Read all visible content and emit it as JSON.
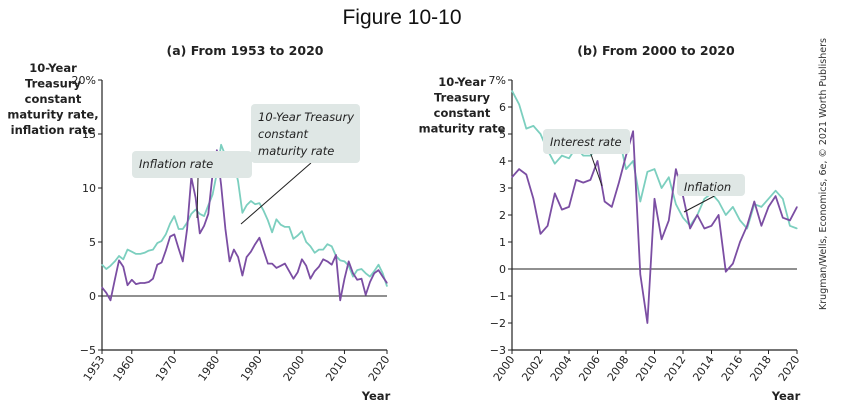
{
  "figure_title": "Figure 10-10",
  "credit": "Krugman/Wells, Economics, 6e, © 2021 Worth Publishers",
  "colors": {
    "inflation": "#7b4ea3",
    "treasury": "#7ccfbf",
    "axis": "#222222",
    "annotation_bg": "#dfe7e5"
  },
  "chart_data": [
    {
      "type": "line",
      "title": "(a) From 1953 to 2020",
      "ylabel": [
        "10-Year",
        "Treasury",
        "constant",
        "maturity rate,",
        "inflation rate"
      ],
      "xlabel": "Year",
      "xlim": [
        1953,
        2020
      ],
      "ylim": [
        -5,
        20
      ],
      "x_ticks": [
        1953,
        1960,
        1970,
        1980,
        1990,
        2000,
        2010,
        2020
      ],
      "y_ticks": [
        -5,
        0,
        5,
        10,
        15,
        20
      ],
      "y_tick_labels": [
        "−5",
        "0",
        "5",
        "10",
        "15",
        "20%"
      ],
      "annotations": [
        {
          "lines": [
            "Inflation rate"
          ],
          "target_series": "inflation"
        },
        {
          "lines": [
            "10-Year Treasury",
            "constant",
            "maturity rate"
          ],
          "target_series": "treasury"
        }
      ],
      "series": [
        {
          "key": "treasury",
          "x": [
            1953,
            1954,
            1955,
            1956,
            1957,
            1958,
            1959,
            1960,
            1961,
            1962,
            1963,
            1964,
            1965,
            1966,
            1967,
            1968,
            1969,
            1970,
            1971,
            1972,
            1973,
            1974,
            1975,
            1976,
            1977,
            1978,
            1979,
            1980,
            1981,
            1982,
            1983,
            1984,
            1985,
            1986,
            1987,
            1988,
            1989,
            1990,
            1991,
            1992,
            1993,
            1994,
            1995,
            1996,
            1997,
            1998,
            1999,
            2000,
            2001,
            2002,
            2003,
            2004,
            2005,
            2006,
            2007,
            2008,
            2009,
            2010,
            2011,
            2012,
            2013,
            2014,
            2015,
            2016,
            2017,
            2018,
            2019,
            2020
          ],
          "values": [
            2.9,
            2.5,
            2.8,
            3.2,
            3.7,
            3.4,
            4.3,
            4.1,
            3.9,
            3.9,
            4.0,
            4.2,
            4.3,
            4.9,
            5.1,
            5.7,
            6.7,
            7.4,
            6.2,
            6.2,
            6.8,
            7.6,
            8.0,
            7.6,
            7.4,
            8.4,
            9.4,
            11.4,
            14.0,
            13.0,
            11.1,
            12.4,
            10.6,
            7.7,
            8.4,
            8.8,
            8.5,
            8.6,
            7.9,
            7.0,
            5.9,
            7.1,
            6.6,
            6.4,
            6.4,
            5.3,
            5.6,
            6.0,
            5.0,
            4.6,
            4.0,
            4.3,
            4.3,
            4.8,
            4.6,
            3.7,
            3.3,
            3.2,
            2.8,
            1.8,
            2.4,
            2.5,
            2.1,
            1.8,
            2.3,
            2.9,
            2.1,
            0.9
          ]
        },
        {
          "key": "inflation",
          "x": [
            1953,
            1954,
            1955,
            1956,
            1957,
            1958,
            1959,
            1960,
            1961,
            1962,
            1963,
            1964,
            1965,
            1966,
            1967,
            1968,
            1969,
            1970,
            1971,
            1972,
            1973,
            1974,
            1975,
            1976,
            1977,
            1978,
            1979,
            1980,
            1981,
            1982,
            1983,
            1984,
            1985,
            1986,
            1987,
            1988,
            1989,
            1990,
            1991,
            1992,
            1993,
            1994,
            1995,
            1996,
            1997,
            1998,
            1999,
            2000,
            2001,
            2002,
            2003,
            2004,
            2005,
            2006,
            2007,
            2008,
            2009,
            2010,
            2011,
            2012,
            2013,
            2014,
            2015,
            2016,
            2017,
            2018,
            2019,
            2020
          ],
          "values": [
            0.8,
            0.3,
            -0.4,
            1.5,
            3.3,
            2.7,
            1.0,
            1.5,
            1.1,
            1.2,
            1.2,
            1.3,
            1.6,
            2.9,
            3.1,
            4.2,
            5.5,
            5.7,
            4.4,
            3.2,
            6.2,
            11.0,
            9.1,
            5.8,
            6.5,
            7.6,
            11.3,
            13.5,
            10.3,
            6.2,
            3.2,
            4.3,
            3.6,
            1.9,
            3.6,
            4.1,
            4.8,
            5.4,
            4.2,
            3.0,
            3.0,
            2.6,
            2.8,
            3.0,
            2.3,
            1.6,
            2.2,
            3.4,
            2.8,
            1.6,
            2.3,
            2.7,
            3.4,
            3.2,
            2.9,
            3.8,
            -0.4,
            1.6,
            3.2,
            2.1,
            1.5,
            1.6,
            0.1,
            1.3,
            2.1,
            2.4,
            1.8,
            1.2
          ]
        }
      ]
    },
    {
      "type": "line",
      "title": "(b) From 2000 to 2020",
      "ylabel": [
        "10-Year",
        "Treasury",
        "constant",
        "maturity rate"
      ],
      "xlabel": "Year",
      "xlim": [
        2000,
        2020
      ],
      "ylim": [
        -3,
        7
      ],
      "x_ticks": [
        2000,
        2002,
        2004,
        2006,
        2008,
        2010,
        2012,
        2014,
        2016,
        2018,
        2020
      ],
      "y_ticks": [
        -3,
        -2,
        -1,
        0,
        1,
        2,
        3,
        4,
        5,
        6,
        7
      ],
      "y_tick_labels": [
        "−3",
        "−2",
        "−1",
        "0",
        "1",
        "2",
        "3",
        "4",
        "5",
        "6",
        "7%"
      ],
      "annotations": [
        {
          "lines": [
            "Interest rate"
          ],
          "target_series": "treasury"
        },
        {
          "lines": [
            "Inflation"
          ],
          "target_series": "inflation"
        }
      ],
      "series": [
        {
          "key": "treasury",
          "x": [
            2000.0,
            2000.5,
            2001.0,
            2001.5,
            2002.0,
            2002.5,
            2003.0,
            2003.5,
            2004.0,
            2004.5,
            2005.0,
            2005.5,
            2006.0,
            2006.5,
            2007.0,
            2007.5,
            2008.0,
            2008.5,
            2009.0,
            2009.5,
            2010.0,
            2010.5,
            2011.0,
            2011.5,
            2012.0,
            2012.5,
            2013.0,
            2013.5,
            2014.0,
            2014.5,
            2015.0,
            2015.5,
            2016.0,
            2016.5,
            2017.0,
            2017.5,
            2018.0,
            2018.5,
            2019.0,
            2019.5,
            2020.0
          ],
          "values": [
            6.6,
            6.1,
            5.2,
            5.3,
            5.0,
            4.4,
            3.9,
            4.2,
            4.1,
            4.5,
            4.2,
            4.2,
            4.5,
            5.1,
            4.7,
            4.9,
            3.7,
            4.0,
            2.5,
            3.6,
            3.7,
            3.0,
            3.4,
            2.4,
            1.9,
            1.6,
            2.0,
            2.6,
            2.8,
            2.5,
            2.0,
            2.3,
            1.8,
            1.5,
            2.4,
            2.3,
            2.6,
            2.9,
            2.6,
            1.6,
            1.5
          ]
        },
        {
          "key": "inflation",
          "x": [
            2000.0,
            2000.5,
            2001.0,
            2001.5,
            2002.0,
            2002.5,
            2003.0,
            2003.5,
            2004.0,
            2004.5,
            2005.0,
            2005.5,
            2006.0,
            2006.5,
            2007.0,
            2007.5,
            2008.0,
            2008.5,
            2009.0,
            2009.5,
            2010.0,
            2010.5,
            2011.0,
            2011.5,
            2012.0,
            2012.5,
            2013.0,
            2013.5,
            2014.0,
            2014.5,
            2015.0,
            2015.5,
            2016.0,
            2016.5,
            2017.0,
            2017.5,
            2018.0,
            2018.5,
            2019.0,
            2019.5,
            2020.0
          ],
          "values": [
            3.4,
            3.7,
            3.5,
            2.6,
            1.3,
            1.6,
            2.8,
            2.2,
            2.3,
            3.3,
            3.2,
            3.3,
            4.0,
            2.5,
            2.3,
            3.2,
            4.2,
            5.1,
            -0.2,
            -2.0,
            2.6,
            1.1,
            1.8,
            3.7,
            2.7,
            1.5,
            2.0,
            1.5,
            1.6,
            2.0,
            -0.1,
            0.2,
            1.0,
            1.6,
            2.5,
            1.6,
            2.3,
            2.7,
            1.9,
            1.8,
            2.3
          ]
        }
      ]
    }
  ]
}
